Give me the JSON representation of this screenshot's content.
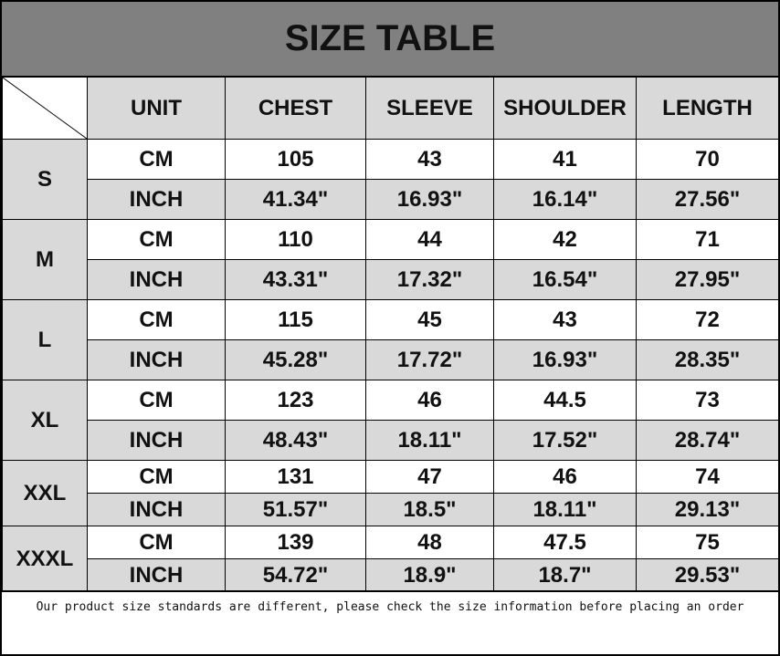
{
  "title": "SIZE TABLE",
  "headers": [
    "UNIT",
    "CHEST",
    "SLEEVE",
    "SHOULDER",
    "LENGTH"
  ],
  "rows": [
    {
      "size": "S",
      "cm": [
        "CM",
        "105",
        "43",
        "41",
        "70"
      ],
      "inch": [
        "INCH",
        "41.34\"",
        "16.93\"",
        "16.14\"",
        "27.56\""
      ]
    },
    {
      "size": "M",
      "cm": [
        "CM",
        "110",
        "44",
        "42",
        "71"
      ],
      "inch": [
        "INCH",
        "43.31\"",
        "17.32\"",
        "16.54\"",
        "27.95\""
      ]
    },
    {
      "size": "L",
      "cm": [
        "CM",
        "115",
        "45",
        "43",
        "72"
      ],
      "inch": [
        "INCH",
        "45.28\"",
        "17.72\"",
        "16.93\"",
        "28.35\""
      ]
    },
    {
      "size": "XL",
      "cm": [
        "CM",
        "123",
        "46",
        "44.5",
        "73"
      ],
      "inch": [
        "INCH",
        "48.43\"",
        "18.11\"",
        "17.52\"",
        "28.74\""
      ]
    },
    {
      "size": "XXL",
      "cm": [
        "CM",
        "131",
        "47",
        "46",
        "74"
      ],
      "inch": [
        "INCH",
        "51.57\"",
        "18.5\"",
        "18.11\"",
        "29.13\""
      ]
    },
    {
      "size": "XXXL",
      "cm": [
        "CM",
        "139",
        "48",
        "47.5",
        "75"
      ],
      "inch": [
        "INCH",
        "54.72\"",
        "18.9\"",
        "18.7\"",
        "29.53\""
      ]
    }
  ],
  "footer": "Our product size standards are different, please check the size information before placing an order",
  "colors": {
    "title_bg": "#808080",
    "cell_gray": "#d9d9d9"
  }
}
